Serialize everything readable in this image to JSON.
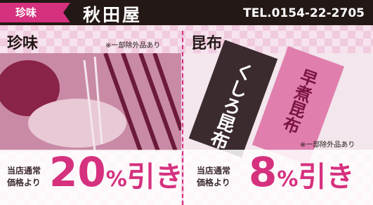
{
  "header": {
    "tag": "珍味",
    "shop": "秋田屋",
    "tel": "TEL.0154-22-2705"
  },
  "panels": [
    {
      "title": "珍味",
      "note": "※一部除外品あり",
      "prefix_line1": "当店通常",
      "prefix_line2": "価格より",
      "number": "20",
      "percent": "%",
      "suffix": "引き"
    },
    {
      "title": "昆布",
      "note": "※一部除外品あり",
      "prefix_line1": "当店通常",
      "prefix_line2": "価格より",
      "number": "8",
      "percent": "%",
      "suffix": "引き",
      "package_labels": [
        "くしろ昆布",
        "早煮昆布"
      ]
    }
  ]
}
